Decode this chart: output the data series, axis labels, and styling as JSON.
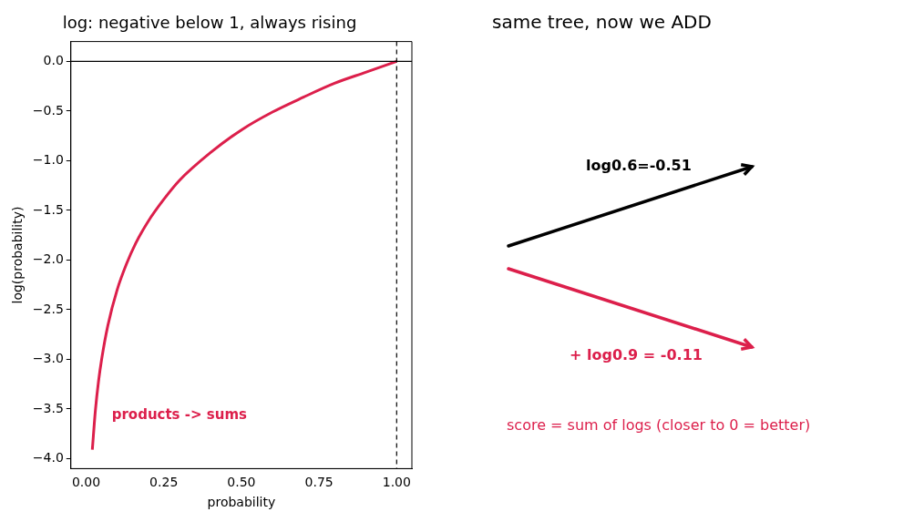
{
  "chart_data": [
    {
      "type": "line",
      "title": "log: negative below 1, always rising",
      "xlabel": "probability",
      "ylabel": "log(probability)",
      "x": [
        0.02,
        0.03,
        0.04,
        0.05,
        0.07,
        0.1,
        0.13,
        0.16,
        0.2,
        0.25,
        0.3,
        0.4,
        0.5,
        0.6,
        0.7,
        0.8,
        0.9,
        1.0
      ],
      "series": [
        {
          "color": "#dc1f4b",
          "values": [
            -3.91,
            -3.51,
            -3.22,
            -3.0,
            -2.66,
            -2.3,
            -2.04,
            -1.83,
            -1.61,
            -1.39,
            -1.2,
            -0.92,
            -0.69,
            -0.51,
            -0.36,
            -0.22,
            -0.11,
            0.0
          ]
        }
      ],
      "xlim": [
        -0.049,
        1.049
      ],
      "xticks": [
        {
          "value": 0,
          "label": "0.00"
        },
        {
          "value": 0.25,
          "label": "0.25"
        },
        {
          "value": 0.5,
          "label": "0.50"
        },
        {
          "value": 0.75,
          "label": "0.75"
        },
        {
          "value": 1,
          "label": "1.00"
        }
      ],
      "ylim": [
        -4.1,
        0.2
      ],
      "yticks": [
        {
          "value": 0,
          "label": "0.0"
        },
        {
          "value": -0.5,
          "label": "−0.5"
        },
        {
          "value": -1,
          "label": "−1.0"
        },
        {
          "value": -1.5,
          "label": "−1.5"
        },
        {
          "value": -2,
          "label": "−2.0"
        },
        {
          "value": -2.5,
          "label": "−2.5"
        },
        {
          "value": -3,
          "label": "−3.0"
        },
        {
          "value": -3.5,
          "label": "−3.5"
        },
        {
          "value": -4,
          "label": "−4.0"
        }
      ],
      "ref_lines": [
        {
          "axis": "y",
          "value": 0,
          "color": "#000000",
          "line_style": "solid"
        },
        {
          "axis": "x",
          "value": 1,
          "color": "#000000",
          "line_style": "dashed"
        }
      ],
      "annotations": [
        "products -> sums"
      ],
      "grid": false,
      "legend": false,
      "marker": "none",
      "line_style": "solid"
    },
    {
      "type": "other",
      "title": "same tree, now we ADD",
      "annotations": [
        "log0.6=-0.51",
        "+ log0.9 = -0.11",
        "score = sum of logs (closer to 0 = better)"
      ]
    }
  ]
}
